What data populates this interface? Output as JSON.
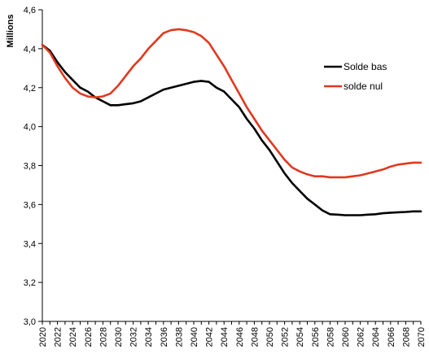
{
  "chart_data": {
    "type": "line",
    "title": "",
    "xlabel": "",
    "ylabel": "Millions",
    "xlim": [
      2020,
      2070
    ],
    "ylim": [
      3.0,
      4.6
    ],
    "grid": false,
    "legend_position": "top-right",
    "x_ticks": [
      "2020",
      "2022",
      "2024",
      "2026",
      "2028",
      "2030",
      "2032",
      "2034",
      "2036",
      "2038",
      "2040",
      "2042",
      "2044",
      "2046",
      "2048",
      "2050",
      "2052",
      "2054",
      "2056",
      "2058",
      "2060",
      "2062",
      "2064",
      "2066",
      "2068",
      "2070"
    ],
    "y_ticks": [
      "3,0",
      "3,2",
      "3,4",
      "3,6",
      "3,8",
      "4,0",
      "4,2",
      "4,4",
      "4,6"
    ],
    "series": [
      {
        "name": "Solde bas",
        "color": "#000000",
        "points": [
          [
            2020,
            4.42
          ],
          [
            2021,
            4.39
          ],
          [
            2022,
            4.33
          ],
          [
            2023,
            4.28
          ],
          [
            2024,
            4.24
          ],
          [
            2025,
            4.2
          ],
          [
            2026,
            4.18
          ],
          [
            2027,
            4.15
          ],
          [
            2028,
            4.13
          ],
          [
            2029,
            4.11
          ],
          [
            2030,
            4.11
          ],
          [
            2031,
            4.115
          ],
          [
            2032,
            4.12
          ],
          [
            2033,
            4.13
          ],
          [
            2034,
            4.15
          ],
          [
            2035,
            4.17
          ],
          [
            2036,
            4.19
          ],
          [
            2037,
            4.2
          ],
          [
            2038,
            4.21
          ],
          [
            2039,
            4.22
          ],
          [
            2040,
            4.23
          ],
          [
            2041,
            4.235
          ],
          [
            2042,
            4.23
          ],
          [
            2043,
            4.2
          ],
          [
            2044,
            4.18
          ],
          [
            2045,
            4.14
          ],
          [
            2046,
            4.1
          ],
          [
            2047,
            4.04
          ],
          [
            2048,
            3.99
          ],
          [
            2049,
            3.93
          ],
          [
            2050,
            3.88
          ],
          [
            2051,
            3.82
          ],
          [
            2052,
            3.76
          ],
          [
            2053,
            3.71
          ],
          [
            2054,
            3.67
          ],
          [
            2055,
            3.63
          ],
          [
            2056,
            3.6
          ],
          [
            2057,
            3.57
          ],
          [
            2058,
            3.55
          ],
          [
            2059,
            3.548
          ],
          [
            2060,
            3.545
          ],
          [
            2061,
            3.545
          ],
          [
            2062,
            3.545
          ],
          [
            2063,
            3.548
          ],
          [
            2064,
            3.55
          ],
          [
            2065,
            3.555
          ],
          [
            2066,
            3.558
          ],
          [
            2067,
            3.56
          ],
          [
            2068,
            3.562
          ],
          [
            2069,
            3.565
          ],
          [
            2070,
            3.565
          ]
        ]
      },
      {
        "name": "solde nul",
        "color": "#e0391f",
        "points": [
          [
            2020,
            4.42
          ],
          [
            2021,
            4.38
          ],
          [
            2022,
            4.31
          ],
          [
            2023,
            4.25
          ],
          [
            2024,
            4.2
          ],
          [
            2025,
            4.17
          ],
          [
            2026,
            4.155
          ],
          [
            2027,
            4.15
          ],
          [
            2028,
            4.155
          ],
          [
            2029,
            4.17
          ],
          [
            2030,
            4.21
          ],
          [
            2031,
            4.26
          ],
          [
            2032,
            4.31
          ],
          [
            2033,
            4.35
          ],
          [
            2034,
            4.4
          ],
          [
            2035,
            4.44
          ],
          [
            2036,
            4.48
          ],
          [
            2037,
            4.495
          ],
          [
            2038,
            4.5
          ],
          [
            2039,
            4.495
          ],
          [
            2040,
            4.485
          ],
          [
            2041,
            4.465
          ],
          [
            2042,
            4.43
          ],
          [
            2043,
            4.37
          ],
          [
            2044,
            4.31
          ],
          [
            2045,
            4.24
          ],
          [
            2046,
            4.17
          ],
          [
            2047,
            4.1
          ],
          [
            2048,
            4.04
          ],
          [
            2049,
            3.98
          ],
          [
            2050,
            3.93
          ],
          [
            2051,
            3.88
          ],
          [
            2052,
            3.83
          ],
          [
            2053,
            3.79
          ],
          [
            2054,
            3.77
          ],
          [
            2055,
            3.755
          ],
          [
            2056,
            3.745
          ],
          [
            2057,
            3.745
          ],
          [
            2058,
            3.74
          ],
          [
            2059,
            3.74
          ],
          [
            2060,
            3.74
          ],
          [
            2061,
            3.745
          ],
          [
            2062,
            3.75
          ],
          [
            2063,
            3.76
          ],
          [
            2064,
            3.77
          ],
          [
            2065,
            3.78
          ],
          [
            2066,
            3.795
          ],
          [
            2067,
            3.805
          ],
          [
            2068,
            3.81
          ],
          [
            2069,
            3.815
          ],
          [
            2070,
            3.815
          ]
        ]
      }
    ]
  }
}
